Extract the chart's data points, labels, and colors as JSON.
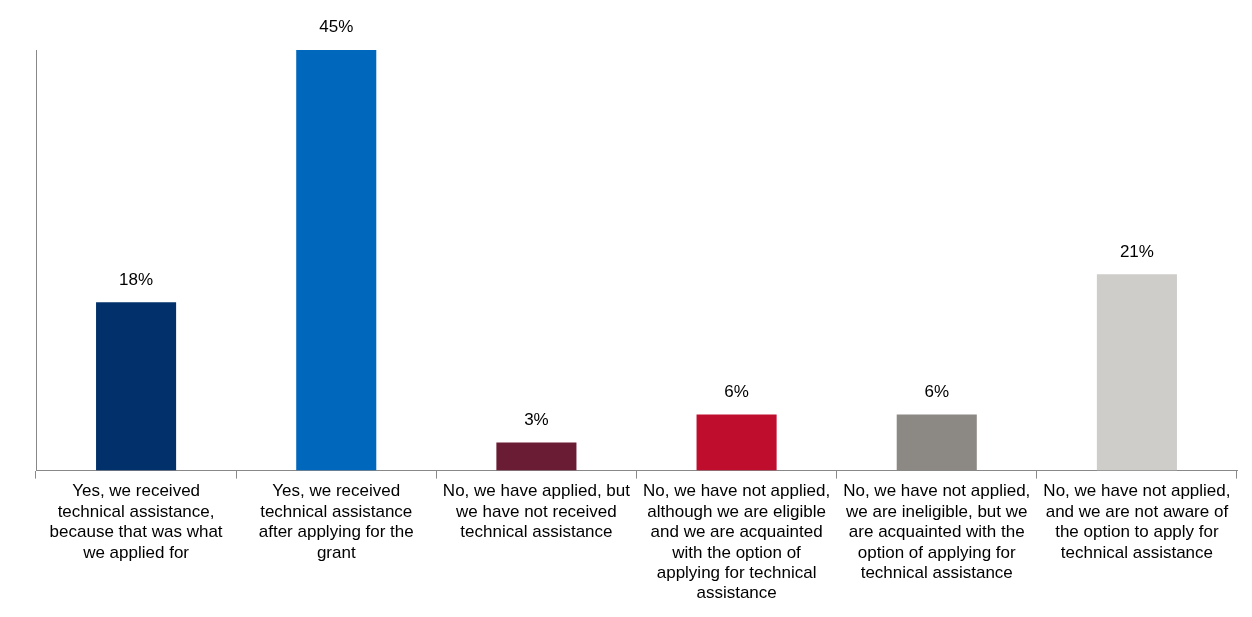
{
  "chart_data": {
    "type": "bar",
    "categories": [
      "Yes, we received technical assistance, because that was what we applied for",
      "Yes, we received technical assistance after applying for the grant",
      "No, we have applied, but we have not received technical assistance",
      "No, we have not applied, although we are eligible and we are acquainted with the option of applying for technical assistance",
      "No, we have not applied, we are ineligible, but we are acquainted with the option of applying for technical assistance",
      "No, we have not applied, and we are not aware of the option to apply for technical assistance"
    ],
    "values": [
      18,
      45,
      3,
      6,
      6,
      21
    ],
    "colors": [
      "#02306b",
      "#0068bc",
      "#6b1c35",
      "#bf0d2e",
      "#8c8883",
      "#cfcdc9"
    ],
    "value_labels": [
      "18%",
      "45%",
      "3%",
      "6%",
      "6%",
      "21%"
    ],
    "grid": false,
    "legend": false
  }
}
